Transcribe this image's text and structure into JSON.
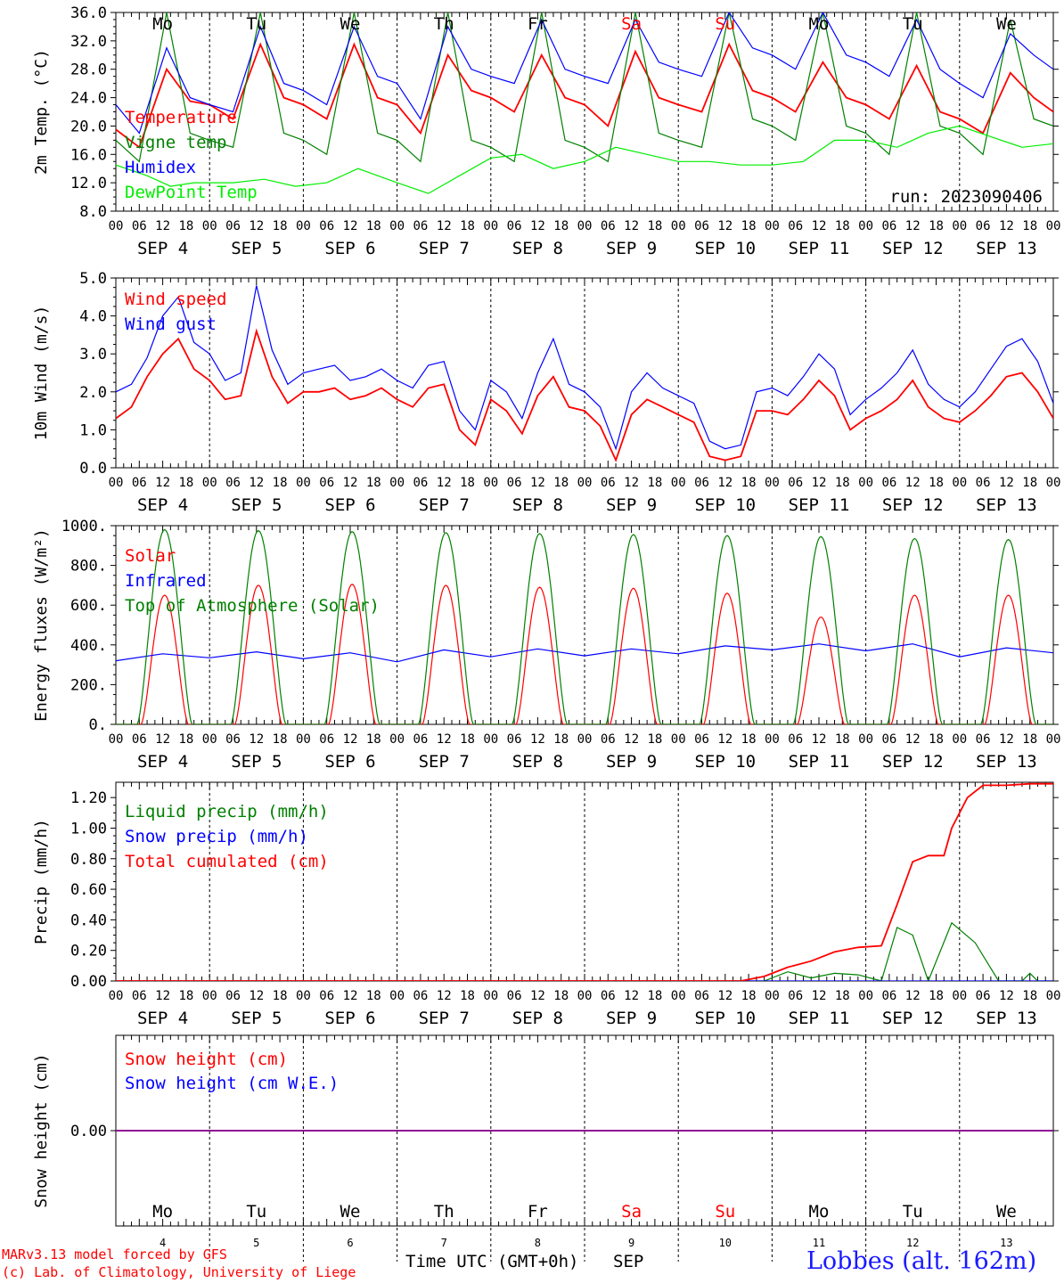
{
  "days": {
    "weekday_labels": [
      "Mo",
      "Tu",
      "We",
      "Th",
      "Fr",
      "Sa",
      "Su",
      "Mo",
      "Tu",
      "We"
    ],
    "weekday_colors": [
      "#000000",
      "#000000",
      "#000000",
      "#000000",
      "#000000",
      "#ff0000",
      "#ff0000",
      "#000000",
      "#000000",
      "#000000"
    ],
    "date_labels": [
      "SEP  4",
      "SEP  5",
      "SEP  6",
      "SEP  7",
      "SEP  8",
      "SEP  9",
      "SEP 10",
      "SEP 11",
      "SEP 12",
      "SEP 13"
    ],
    "hour_labels": [
      "00",
      "06",
      "12",
      "18"
    ],
    "day_numbers": [
      "4",
      "5",
      "6",
      "7",
      "8",
      "9",
      "10",
      "11",
      "12",
      "13"
    ]
  },
  "chart_data": [
    {
      "type": "line",
      "ylabel": "2m Temp. (°C)",
      "ylim": [
        8,
        36
      ],
      "y_ticks": [
        "8.0",
        "12.0",
        "16.0",
        "20.0",
        "24.0",
        "28.0",
        "32.0",
        "36.0"
      ],
      "annotation": "run: 2023090406",
      "x_units": "hours since SEP 4 00 UTC",
      "series": [
        {
          "name": "Temperature",
          "color": "#ff0000",
          "x": [
            0,
            6,
            13,
            19,
            24,
            30,
            37,
            43,
            48,
            54,
            61,
            67,
            72,
            78,
            85,
            91,
            96,
            102,
            109,
            115,
            120,
            126,
            133,
            139,
            144,
            150,
            157,
            163,
            168,
            174,
            181,
            187,
            192,
            198,
            205,
            211,
            216,
            222,
            229,
            235,
            240
          ],
          "y": [
            19.5,
            17,
            28,
            23.5,
            23,
            21,
            31.5,
            24,
            23,
            21,
            31.5,
            24,
            23,
            19,
            30,
            25,
            24,
            22,
            30,
            24,
            23,
            20,
            30.5,
            24,
            23,
            22,
            31.5,
            25,
            24,
            22,
            29,
            24,
            23,
            21,
            28.5,
            22,
            21,
            19,
            27.5,
            24,
            22
          ]
        },
        {
          "name": "Vigne temp",
          "color": "#008000",
          "x": [
            0,
            6,
            13,
            19,
            24,
            30,
            37,
            43,
            48,
            54,
            61,
            67,
            72,
            78,
            85,
            91,
            96,
            102,
            109,
            115,
            120,
            126,
            133,
            139,
            144,
            150,
            157,
            163,
            168,
            174,
            181,
            187,
            192,
            198,
            205,
            211,
            216,
            222,
            229,
            235,
            240
          ],
          "y": [
            18,
            15,
            36,
            19,
            18,
            17,
            36,
            19,
            18,
            16,
            36,
            19,
            18,
            15,
            36,
            18,
            17,
            15,
            36,
            18,
            17,
            15,
            36,
            19,
            18,
            17,
            36,
            21,
            20,
            18,
            36,
            20,
            19,
            16,
            36,
            20,
            19,
            16,
            35,
            21,
            20
          ]
        },
        {
          "name": "Humidex",
          "color": "#0000ff",
          "x": [
            0,
            6,
            13,
            19,
            24,
            30,
            37,
            43,
            48,
            54,
            61,
            67,
            72,
            78,
            85,
            91,
            96,
            102,
            109,
            115,
            120,
            126,
            133,
            139,
            144,
            150,
            157,
            163,
            168,
            174,
            181,
            187,
            192,
            198,
            205,
            211,
            216,
            222,
            229,
            235,
            240
          ],
          "y": [
            23,
            19,
            31,
            24,
            23,
            22,
            34,
            26,
            25,
            23,
            34,
            27,
            26,
            21,
            34,
            28,
            27,
            26,
            35,
            28,
            27,
            26,
            35,
            29,
            28,
            27,
            36,
            31,
            30,
            28,
            36,
            30,
            29,
            27,
            35,
            28,
            26,
            24,
            33,
            30,
            28
          ]
        },
        {
          "name": "DewPoint Temp",
          "color": "#00ee00",
          "x": [
            0,
            8,
            14,
            20,
            30,
            38,
            46,
            54,
            62,
            72,
            80,
            88,
            96,
            104,
            112,
            120,
            128,
            136,
            144,
            152,
            160,
            168,
            176,
            184,
            192,
            200,
            208,
            216,
            224,
            232,
            240
          ],
          "y": [
            14.5,
            13,
            11.5,
            12,
            12,
            12.5,
            11.5,
            12,
            14,
            12,
            10.5,
            13,
            15.5,
            16,
            14,
            15,
            17,
            16,
            15,
            15,
            14.5,
            14.5,
            15,
            18,
            18,
            17,
            19,
            20,
            18.5,
            17,
            17.5
          ]
        }
      ]
    },
    {
      "type": "line",
      "ylabel": "10m Wind (m/s)",
      "ylim": [
        0,
        5
      ],
      "y_ticks": [
        "0.0",
        "1.0",
        "2.0",
        "3.0",
        "4.0",
        "5.0"
      ],
      "x_units": "hours since SEP 4 00 UTC",
      "series": [
        {
          "name": "Wind speed",
          "color": "#ff0000",
          "x": [
            0,
            4,
            8,
            12,
            16,
            20,
            24,
            28,
            32,
            36,
            40,
            44,
            48,
            52,
            56,
            60,
            64,
            68,
            72,
            76,
            80,
            84,
            88,
            92,
            96,
            100,
            104,
            108,
            112,
            116,
            120,
            124,
            128,
            132,
            136,
            140,
            144,
            148,
            152,
            156,
            160,
            164,
            168,
            172,
            176,
            180,
            184,
            188,
            192,
            196,
            200,
            204,
            208,
            212,
            216,
            220,
            224,
            228,
            232,
            236,
            240
          ],
          "y": [
            1.3,
            1.6,
            2.4,
            3.0,
            3.4,
            2.6,
            2.3,
            1.8,
            1.9,
            3.6,
            2.4,
            1.7,
            2.0,
            2.0,
            2.1,
            1.8,
            1.9,
            2.1,
            1.8,
            1.6,
            2.1,
            2.2,
            1.0,
            0.6,
            1.8,
            1.5,
            0.9,
            1.9,
            2.4,
            1.6,
            1.5,
            1.1,
            0.2,
            1.4,
            1.8,
            1.6,
            1.4,
            1.2,
            0.3,
            0.2,
            0.3,
            1.5,
            1.5,
            1.4,
            1.8,
            2.3,
            1.9,
            1.0,
            1.3,
            1.5,
            1.8,
            2.3,
            1.6,
            1.3,
            1.2,
            1.5,
            1.9,
            2.4,
            2.5,
            2.0,
            1.3
          ]
        },
        {
          "name": "Wind gust",
          "color": "#0000ff",
          "x": [
            0,
            4,
            8,
            12,
            16,
            20,
            24,
            28,
            32,
            36,
            40,
            44,
            48,
            52,
            56,
            60,
            64,
            68,
            72,
            76,
            80,
            84,
            88,
            92,
            96,
            100,
            104,
            108,
            112,
            116,
            120,
            124,
            128,
            132,
            136,
            140,
            144,
            148,
            152,
            156,
            160,
            164,
            168,
            172,
            176,
            180,
            184,
            188,
            192,
            196,
            200,
            204,
            208,
            212,
            216,
            220,
            224,
            228,
            232,
            236,
            240
          ],
          "y": [
            2.0,
            2.2,
            2.9,
            4.0,
            4.5,
            3.3,
            3.0,
            2.3,
            2.5,
            4.8,
            3.1,
            2.2,
            2.5,
            2.6,
            2.7,
            2.3,
            2.4,
            2.6,
            2.3,
            2.1,
            2.7,
            2.8,
            1.5,
            1.0,
            2.3,
            2.0,
            1.3,
            2.5,
            3.4,
            2.2,
            2.0,
            1.6,
            0.5,
            2.0,
            2.5,
            2.1,
            1.9,
            1.7,
            0.7,
            0.5,
            0.6,
            2.0,
            2.1,
            1.9,
            2.4,
            3.0,
            2.6,
            1.4,
            1.8,
            2.1,
            2.5,
            3.1,
            2.2,
            1.8,
            1.6,
            2.0,
            2.6,
            3.2,
            3.4,
            2.8,
            1.7
          ]
        }
      ]
    },
    {
      "type": "line",
      "ylabel": "Energy fluxes (W/m²)",
      "ylim": [
        0,
        1000
      ],
      "y_ticks": [
        "0.",
        "200.",
        "400.",
        "600.",
        "800.",
        "1000."
      ],
      "x_units": "hours since SEP 4 00 UTC",
      "series": [
        {
          "name": "Solar",
          "color": "#ff0000",
          "day_peaks": [
            650,
            700,
            705,
            700,
            690,
            685,
            660,
            540,
            650,
            650
          ],
          "day_start_hour": 6.5,
          "day_end_hour": 18.5
        },
        {
          "name": "Infrared",
          "color": "#0000ff",
          "x": [
            0,
            12,
            24,
            36,
            48,
            60,
            72,
            84,
            96,
            108,
            120,
            132,
            144,
            156,
            168,
            180,
            192,
            204,
            216,
            228,
            240
          ],
          "y": [
            320,
            355,
            335,
            365,
            330,
            360,
            315,
            375,
            340,
            380,
            345,
            380,
            355,
            395,
            375,
            405,
            370,
            405,
            340,
            385,
            360
          ]
        },
        {
          "name": "Top of Atmosphere (Solar)",
          "color": "#008000",
          "day_peaks": [
            980,
            975,
            970,
            965,
            960,
            955,
            950,
            945,
            935,
            930
          ],
          "day_start_hour": 5.5,
          "day_end_hour": 19.5
        }
      ]
    },
    {
      "type": "line",
      "ylabel": "Precip (mm/h)",
      "ylim": [
        0,
        1.3
      ],
      "y_ticks": [
        "0.00",
        "0.20",
        "0.40",
        "0.60",
        "0.80",
        "1.00",
        "1.20"
      ],
      "x_units": "hours since SEP 4 00 UTC",
      "series": [
        {
          "name": "Liquid precip (mm/h)",
          "color": "#008000",
          "x": [
            0,
            166,
            172,
            178,
            184,
            190,
            196,
            200,
            204,
            208,
            214,
            220,
            226,
            232,
            234,
            236,
            240
          ],
          "y": [
            0,
            0,
            0.06,
            0.02,
            0.05,
            0.04,
            0.0,
            0.35,
            0.3,
            0.0,
            0.38,
            0.25,
            0.0,
            0.0,
            0.05,
            0.0,
            0
          ]
        },
        {
          "name": "Snow precip (mm/h)",
          "color": "#0000ff",
          "x": [
            0,
            240
          ],
          "y": [
            0,
            0
          ]
        },
        {
          "name": "Total cumulated (cm)",
          "color": "#ff0000",
          "x": [
            0,
            160,
            166,
            172,
            178,
            184,
            190,
            196,
            200,
            204,
            208,
            212,
            214,
            218,
            222,
            228,
            234,
            240
          ],
          "y": [
            0,
            0,
            0.03,
            0.09,
            0.13,
            0.19,
            0.22,
            0.23,
            0.5,
            0.78,
            0.82,
            0.82,
            1.0,
            1.2,
            1.28,
            1.28,
            1.29,
            1.29
          ]
        }
      ]
    },
    {
      "type": "line",
      "ylabel": "Snow height (cm)",
      "ylim": [
        -1,
        1
      ],
      "y_ticks": [
        "0.00"
      ],
      "x_units": "hours since SEP 4 00 UTC",
      "series": [
        {
          "name": "Snow height (cm)",
          "color": "#ff0000",
          "x": [
            0,
            240
          ],
          "y": [
            0,
            0
          ]
        },
        {
          "name": "Snow height (cm W.E.)",
          "color": "#0000ff",
          "x": [
            0,
            240
          ],
          "y": [
            0,
            0
          ]
        }
      ]
    }
  ],
  "footer": {
    "xlabel": "Time UTC (GMT+0h)",
    "month": "SEP",
    "credit1": "MARv3.13 model forced by GFS",
    "credit2": "(c) Lab. of Climatology, University of Liege",
    "station": "Lobbes (alt. 162m)"
  }
}
